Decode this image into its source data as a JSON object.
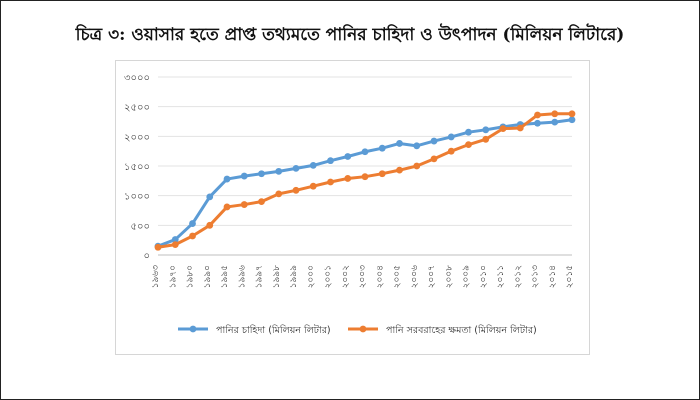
{
  "title": "চিত্র ৩: ওয়াসার হতে প্রাপ্ত তথ্যমতে পানির চাহিদা ও উৎপাদন (মিলিয়ন লিটারে)",
  "chart_data": {
    "type": "line",
    "title": "চিত্র ৩: ওয়াসার হতে প্রাপ্ত তথ্যমতে পানির চাহিদা ও উৎপাদন (মিলিয়ন লিটারে)",
    "x": [
      "১৯৬৩",
      "১৯৭০",
      "১৯৮০",
      "১৯৯০",
      "১৯৯৫",
      "১৯৯৬",
      "১৯৯৭",
      "১৯৯৮",
      "১৯৯৯",
      "২০০০",
      "২০০১",
      "২০০২",
      "২০০৩",
      "২০০৪",
      "২০০৫",
      "২০০৬",
      "২০০৭",
      "২০০৮",
      "২০০৯",
      "২০১০",
      "২০১১",
      "২০১২",
      "২০১৩",
      "২০১৪",
      "২০১৫"
    ],
    "yticks": [
      "০",
      "৫০০",
      "১০০০",
      "১৫০০",
      "২০০০",
      "২৫০০",
      "৩০০০"
    ],
    "ylim": [
      0,
      3000
    ],
    "grid": true,
    "legend_position": "bottom",
    "series": [
      {
        "name": "পানির চাহিদা (মিলিয়ন লিটার)",
        "color": "#5b9bd5",
        "values": [
          150,
          260,
          530,
          980,
          1280,
          1330,
          1370,
          1410,
          1460,
          1510,
          1590,
          1660,
          1740,
          1800,
          1880,
          1840,
          1920,
          1990,
          2070,
          2110,
          2160,
          2200,
          2220,
          2240,
          2280
        ]
      },
      {
        "name": "পানি সরবরাহের ক্ষমতা (মিলিয়ন লিটার)",
        "color": "#ed7d31",
        "values": [
          130,
          175,
          320,
          500,
          810,
          850,
          900,
          1030,
          1090,
          1160,
          1230,
          1290,
          1320,
          1370,
          1430,
          1500,
          1620,
          1750,
          1860,
          1950,
          2130,
          2140,
          2360,
          2380,
          2380
        ]
      }
    ]
  }
}
